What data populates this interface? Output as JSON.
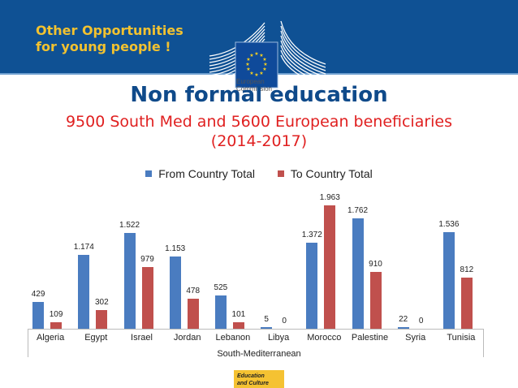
{
  "banner": {
    "title_line1": "Other Opportunities",
    "title_line2": "for young people !",
    "logo_text_line1": "European",
    "logo_text_line2": "Commission"
  },
  "title": "Non formal education",
  "subtitle_line1": "9500 South Med and 5600 European beneficiaries",
  "subtitle_line2": "(2014-2017)",
  "footer_badge_line1": "Education",
  "footer_badge_line2": "and Culture",
  "colors": {
    "banner": "#0f5194",
    "banner_text": "#f2c230",
    "title": "#0f4a8a",
    "subtitle": "#e02020",
    "series_from": "#4a7cc0",
    "series_to": "#c0504d"
  },
  "chart_data": {
    "type": "bar",
    "title": "",
    "xlabel": "South-Mediterranean",
    "ylabel": "",
    "categories": [
      "Algeria",
      "Egypt",
      "Israel",
      "Jordan",
      "Lebanon",
      "Libya",
      "Morocco",
      "Palestine",
      "Syria",
      "Tunisia"
    ],
    "series": [
      {
        "name": "From Country Total",
        "values": [
          429,
          1174,
          1522,
          1153,
          525,
          5,
          1372,
          1762,
          22,
          1536
        ],
        "labels": [
          "429",
          "1.174",
          "1.522",
          "1.153",
          "525",
          "5",
          "1.372",
          "1.762",
          "22",
          "1.536"
        ]
      },
      {
        "name": "To Country Total",
        "values": [
          109,
          302,
          979,
          478,
          101,
          0,
          1963,
          910,
          0,
          812
        ],
        "labels": [
          "109",
          "302",
          "979",
          "478",
          "101",
          "0",
          "1.963",
          "910",
          "0",
          "812"
        ]
      }
    ],
    "legend_position": "top",
    "grid": false,
    "ylim": [
      0,
      2000
    ]
  }
}
